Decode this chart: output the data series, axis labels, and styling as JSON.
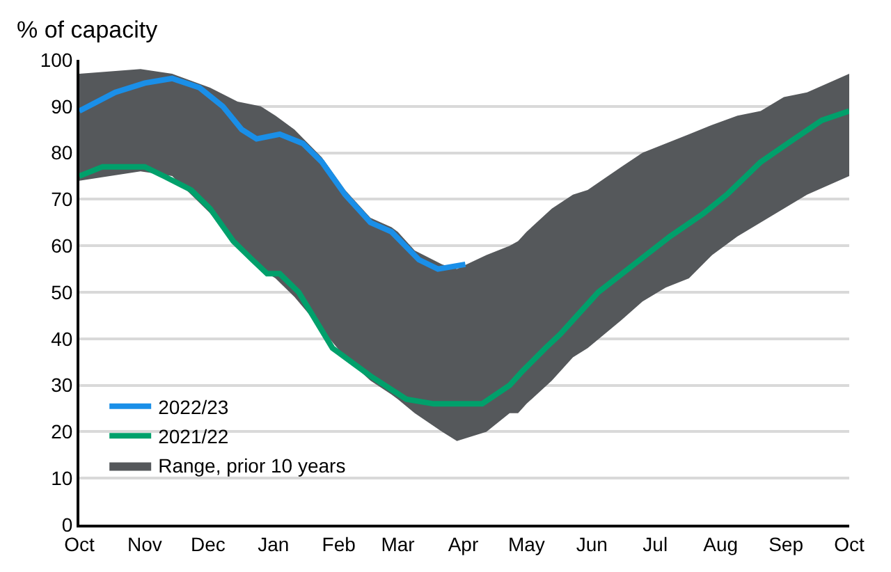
{
  "chart_data": {
    "type": "line",
    "ylabel": "% of capacity",
    "xlim": [
      "2021-10-01",
      "2022-10-01"
    ],
    "xticks": [
      {
        "value": "2021-10-01",
        "label": "Oct"
      },
      {
        "value": "2021-11-01",
        "label": "Nov"
      },
      {
        "value": "2021-12-01",
        "label": "Dec"
      },
      {
        "value": "2022-01-01",
        "label": "Jan"
      },
      {
        "value": "2022-02-01",
        "label": "Feb"
      },
      {
        "value": "2022-03-01",
        "label": "Mar"
      },
      {
        "value": "2022-04-01",
        "label": "Apr"
      },
      {
        "value": "2022-05-01",
        "label": "May"
      },
      {
        "value": "2022-06-01",
        "label": "Jun"
      },
      {
        "value": "2022-07-01",
        "label": "Jul"
      },
      {
        "value": "2022-08-01",
        "label": "Aug"
      },
      {
        "value": "2022-09-01",
        "label": "Sep"
      },
      {
        "value": "2022-10-01",
        "label": "Oct"
      }
    ],
    "ylim": [
      0,
      100
    ],
    "yticks": [
      0,
      10,
      20,
      30,
      40,
      50,
      60,
      70,
      80,
      90,
      100
    ],
    "grid": "y",
    "legend": "bottom left",
    "marker": "none",
    "line_style": "solid",
    "series": [
      {
        "name": "2022/23",
        "color": "#1a8fe8",
        "x": [
          "2021-10-01",
          "2021-10-18",
          "2021-11-01",
          "2021-11-14",
          "2021-11-27",
          "2021-12-08",
          "2021-12-17",
          "2021-12-24",
          "2022-01-04",
          "2022-01-15",
          "2022-01-24",
          "2022-02-04",
          "2022-02-16",
          "2022-02-26",
          "2022-03-11",
          "2022-03-20",
          "2022-04-02"
        ],
        "values": [
          89,
          93,
          95,
          96,
          94,
          90,
          85,
          83,
          84,
          82,
          78,
          71,
          65,
          63,
          57,
          55,
          56
        ]
      },
      {
        "name": "2021/22",
        "color": "#00a06b",
        "x": [
          "2021-10-01",
          "2021-10-12",
          "2021-11-01",
          "2021-11-10",
          "2021-11-23",
          "2021-12-02",
          "2021-12-13",
          "2021-12-22",
          "2021-12-29",
          "2022-01-04",
          "2022-01-13",
          "2022-01-29",
          "2022-02-16",
          "2022-03-05",
          "2022-03-18",
          "2022-03-31",
          "2022-04-10",
          "2022-04-23",
          "2022-04-29",
          "2022-05-10",
          "2022-05-17",
          "2022-06-04",
          "2022-06-21",
          "2022-07-08",
          "2022-07-24",
          "2022-08-04",
          "2022-08-20",
          "2022-09-05",
          "2022-09-18",
          "2022-10-01"
        ],
        "values": [
          75,
          77,
          77,
          75,
          72,
          68,
          61,
          57,
          54,
          54,
          50,
          38,
          32,
          27,
          26,
          26,
          26,
          30,
          33,
          38,
          41,
          50,
          56,
          62,
          67,
          71,
          78,
          83,
          87,
          89
        ]
      },
      {
        "name": "Range, prior 10 years",
        "type": "area",
        "color": "#55585b",
        "x": [
          "2021-10-01",
          "2021-10-30",
          "2021-11-14",
          "2021-12-02",
          "2021-12-15",
          "2021-12-26",
          "2022-01-02",
          "2022-01-11",
          "2022-01-24",
          "2022-02-04",
          "2022-02-16",
          "2022-02-26",
          "2022-03-01",
          "2022-03-09",
          "2022-03-22",
          "2022-03-29",
          "2022-04-12",
          "2022-04-23",
          "2022-04-27",
          "2022-05-01",
          "2022-05-13",
          "2022-05-23",
          "2022-05-30",
          "2022-06-15",
          "2022-06-25",
          "2022-07-06",
          "2022-07-17",
          "2022-07-28",
          "2022-08-09",
          "2022-08-20",
          "2022-08-31",
          "2022-09-11",
          "2022-10-01"
        ],
        "values": [
          null,
          null,
          null,
          null,
          null,
          null,
          null,
          null,
          null,
          null,
          null,
          null,
          null,
          null,
          null,
          null,
          null,
          null,
          null,
          null,
          null,
          null,
          null,
          null,
          null,
          null,
          null,
          null,
          null,
          null,
          null,
          null,
          null
        ],
        "upper": [
          97,
          98,
          97,
          94,
          91,
          90,
          88,
          85,
          79,
          72,
          66,
          64,
          63,
          59,
          56,
          55,
          58,
          60,
          61,
          63,
          68,
          71,
          72,
          77,
          80,
          82,
          84,
          86,
          88,
          89,
          92,
          93,
          97
        ],
        "lower": [
          74,
          76,
          75,
          67,
          60,
          55,
          53,
          49,
          42,
          36,
          31,
          28,
          27,
          24,
          20,
          18,
          20,
          24,
          24,
          26,
          31,
          36,
          38,
          44,
          48,
          51,
          53,
          58,
          62,
          65,
          68,
          71,
          75
        ]
      }
    ]
  }
}
